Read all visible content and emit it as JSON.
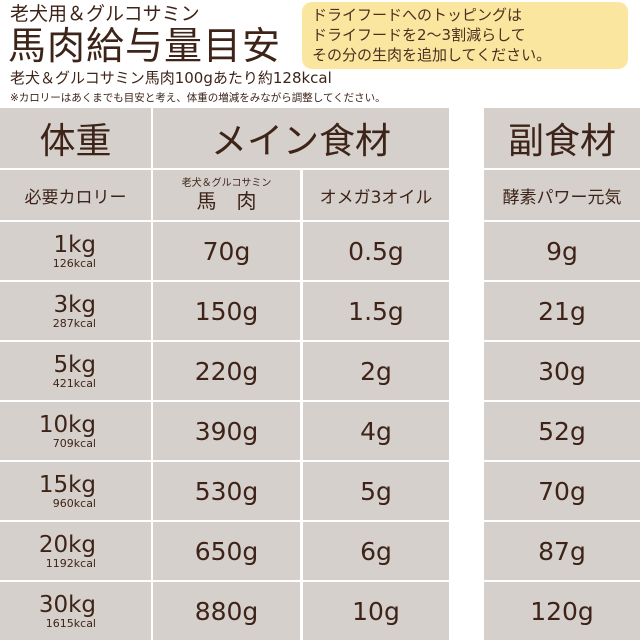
{
  "header": {
    "subtitle": "老犬用＆グルコサミン",
    "title": "馬肉給与量目安",
    "per100g": "老犬＆グルコサミン馬肉100gあたり約128kcal",
    "note": "※カロリーはあくまでも目安と考え、体重の増減をみながら調整してください。"
  },
  "tip": [
    "ドライフードへのトッピングは",
    "ドライフードを2〜3割減らして",
    "その分の生肉を追加してください。"
  ],
  "table": {
    "weight_header": "体重",
    "calorie_header": "必要カロリー",
    "main_header": "メイン食材",
    "side_header": "副食材",
    "meat_small": "老犬＆グルコサミン",
    "meat": "馬　肉",
    "omega": "オメガ3オイル",
    "enzyme": "酵素パワー元気",
    "rows": [
      {
        "weight": "1kg",
        "kcal": "126kcal",
        "meat": "70g",
        "omega": "0.5g",
        "enzyme": "9g"
      },
      {
        "weight": "3kg",
        "kcal": "287kcal",
        "meat": "150g",
        "omega": "1.5g",
        "enzyme": "21g"
      },
      {
        "weight": "5kg",
        "kcal": "421kcal",
        "meat": "220g",
        "omega": "2g",
        "enzyme": "30g"
      },
      {
        "weight": "10kg",
        "kcal": "709kcal",
        "meat": "390g",
        "omega": "4g",
        "enzyme": "52g"
      },
      {
        "weight": "15kg",
        "kcal": "960kcal",
        "meat": "530g",
        "omega": "5g",
        "enzyme": "70g"
      },
      {
        "weight": "20kg",
        "kcal": "1192kcal",
        "meat": "650g",
        "omega": "6g",
        "enzyme": "87g"
      },
      {
        "weight": "30kg",
        "kcal": "1615kcal",
        "meat": "880g",
        "omega": "10g",
        "enzyme": "120g"
      }
    ]
  }
}
